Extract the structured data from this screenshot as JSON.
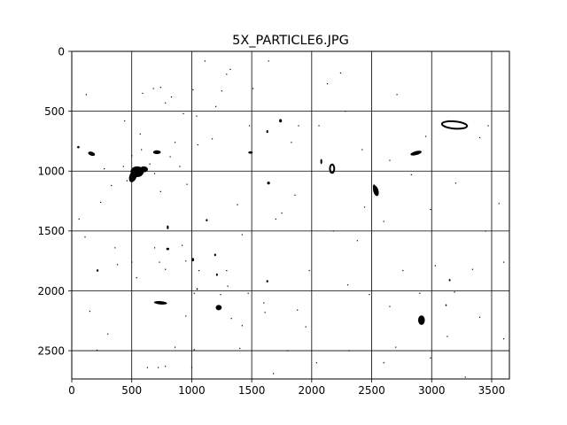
{
  "chart_data": {
    "type": "image",
    "title": "5X_PARTICLE6.JPG",
    "xlabel": "",
    "ylabel": "",
    "xlim": [
      0,
      3648
    ],
    "ylim": [
      2736,
      0
    ],
    "y_inverted": true,
    "xticks": [
      0,
      500,
      1000,
      1500,
      2000,
      2500,
      3000,
      3500
    ],
    "yticks": [
      0,
      500,
      1000,
      1500,
      2000,
      2500
    ],
    "grid": true,
    "legend": "none",
    "colors": {
      "background": "#ffffff",
      "particle": "#000000",
      "grid": "#000000"
    },
    "particles": [
      {
        "x": 545,
        "y": 1005,
        "rx": 55,
        "ry": 45,
        "angle": 0
      },
      {
        "x": 510,
        "y": 1045,
        "rx": 30,
        "ry": 50,
        "angle": 20
      },
      {
        "x": 600,
        "y": 985,
        "rx": 35,
        "ry": 25,
        "angle": 0
      },
      {
        "x": 165,
        "y": 855,
        "rx": 30,
        "ry": 16,
        "angle": 20
      },
      {
        "x": 55,
        "y": 800,
        "rx": 10,
        "ry": 10,
        "angle": 0
      },
      {
        "x": 710,
        "y": 842,
        "rx": 32,
        "ry": 16,
        "angle": 0
      },
      {
        "x": 740,
        "y": 2100,
        "rx": 55,
        "ry": 14,
        "angle": 5
      },
      {
        "x": 1225,
        "y": 2140,
        "rx": 25,
        "ry": 22,
        "angle": 0
      },
      {
        "x": 2870,
        "y": 850,
        "rx": 48,
        "ry": 16,
        "angle": -15
      },
      {
        "x": 2535,
        "y": 1165,
        "rx": 22,
        "ry": 45,
        "angle": -15
      },
      {
        "x": 2915,
        "y": 2245,
        "rx": 28,
        "ry": 40,
        "angle": 0
      },
      {
        "x": 1740,
        "y": 580,
        "rx": 12,
        "ry": 14,
        "angle": 0
      },
      {
        "x": 1630,
        "y": 670,
        "rx": 8,
        "ry": 12,
        "angle": 0
      },
      {
        "x": 1640,
        "y": 1100,
        "rx": 12,
        "ry": 12,
        "angle": 0
      },
      {
        "x": 1490,
        "y": 845,
        "rx": 18,
        "ry": 10,
        "angle": 0
      },
      {
        "x": 2080,
        "y": 920,
        "rx": 8,
        "ry": 22,
        "angle": 0
      },
      {
        "x": 1195,
        "y": 1700,
        "rx": 8,
        "ry": 10,
        "angle": 0
      },
      {
        "x": 1210,
        "y": 1865,
        "rx": 8,
        "ry": 10,
        "angle": 0
      },
      {
        "x": 1010,
        "y": 1740,
        "rx": 10,
        "ry": 14,
        "angle": 0
      },
      {
        "x": 800,
        "y": 1650,
        "rx": 12,
        "ry": 10,
        "angle": 0
      },
      {
        "x": 1630,
        "y": 1920,
        "rx": 8,
        "ry": 10,
        "angle": 0
      },
      {
        "x": 800,
        "y": 1470,
        "rx": 8,
        "ry": 16,
        "angle": 0
      },
      {
        "x": 215,
        "y": 1830,
        "rx": 8,
        "ry": 10,
        "angle": 0
      },
      {
        "x": 1125,
        "y": 1410,
        "rx": 8,
        "ry": 10,
        "angle": 0
      },
      {
        "x": 3150,
        "y": 1910,
        "rx": 7,
        "ry": 10,
        "angle": 0
      },
      {
        "x": 3120,
        "y": 2120,
        "rx": 6,
        "ry": 8,
        "angle": 0
      },
      {
        "x": 1045,
        "y": 1985,
        "rx": 6,
        "ry": 8,
        "angle": 0
      },
      {
        "x": 2520,
        "y": 1130,
        "rx": 10,
        "ry": 18,
        "angle": 0
      }
    ],
    "particle_outlines": [
      {
        "x": 3190,
        "y": 615,
        "rx": 105,
        "ry": 30,
        "angle": 5
      },
      {
        "x": 2170,
        "y": 980,
        "rx": 18,
        "ry": 35,
        "angle": 0
      }
    ],
    "specks": [
      [
        210,
        2495
      ],
      [
        150,
        2170
      ],
      [
        590,
        350
      ],
      [
        680,
        310
      ],
      [
        740,
        300
      ],
      [
        830,
        380
      ],
      [
        780,
        430
      ],
      [
        860,
        760
      ],
      [
        820,
        880
      ],
      [
        900,
        960
      ],
      [
        740,
        1170
      ],
      [
        960,
        1110
      ],
      [
        240,
        1260
      ],
      [
        360,
        1640
      ],
      [
        380,
        1780
      ],
      [
        500,
        1760
      ],
      [
        540,
        1890
      ],
      [
        690,
        1640
      ],
      [
        730,
        1760
      ],
      [
        780,
        1820
      ],
      [
        920,
        1620
      ],
      [
        950,
        1750
      ],
      [
        1020,
        2020
      ],
      [
        1060,
        1830
      ],
      [
        1240,
        2030
      ],
      [
        1290,
        1830
      ],
      [
        1300,
        1960
      ],
      [
        1330,
        2230
      ],
      [
        1400,
        2480
      ],
      [
        1470,
        2020
      ],
      [
        1600,
        2100
      ],
      [
        1610,
        2180
      ],
      [
        1880,
        2160
      ],
      [
        2310,
        2500
      ],
      [
        2380,
        1580
      ],
      [
        2760,
        1830
      ],
      [
        2990,
        2560
      ],
      [
        3130,
        2380
      ],
      [
        3190,
        2010
      ],
      [
        3280,
        2720
      ],
      [
        1020,
        2490
      ],
      [
        1000,
        2640
      ],
      [
        780,
        2630
      ],
      [
        720,
        2640
      ],
      [
        630,
        2640
      ],
      [
        1680,
        2690
      ],
      [
        2040,
        2600
      ],
      [
        1640,
        80
      ],
      [
        1110,
        80
      ],
      [
        1010,
        320
      ],
      [
        1290,
        190
      ],
      [
        1320,
        150
      ],
      [
        1250,
        330
      ],
      [
        1200,
        460
      ],
      [
        1040,
        540
      ],
      [
        1050,
        780
      ],
      [
        1480,
        620
      ],
      [
        1830,
        760
      ],
      [
        1890,
        620
      ],
      [
        2060,
        620
      ],
      [
        2240,
        180
      ],
      [
        2710,
        360
      ],
      [
        2830,
        1030
      ],
      [
        2990,
        1320
      ],
      [
        3340,
        1820
      ],
      [
        2700,
        2470
      ],
      [
        2280,
        500
      ],
      [
        2130,
        270
      ],
      [
        1510,
        310
      ],
      [
        440,
        580
      ],
      [
        500,
        870
      ],
      [
        430,
        960
      ],
      [
        460,
        1080
      ],
      [
        580,
        820
      ],
      [
        650,
        940
      ],
      [
        690,
        1020
      ],
      [
        1170,
        730
      ],
      [
        1380,
        1280
      ],
      [
        1420,
        1530
      ],
      [
        1700,
        1400
      ],
      [
        1750,
        1350
      ],
      [
        2440,
        1300
      ],
      [
        2600,
        1420
      ],
      [
        2300,
        1950
      ],
      [
        2650,
        2130
      ],
      [
        2900,
        2020
      ],
      [
        3030,
        1790
      ],
      [
        3400,
        2220
      ],
      [
        3600,
        1760
      ],
      [
        3560,
        1270
      ],
      [
        3400,
        720
      ],
      [
        3470,
        620
      ],
      [
        2950,
        710
      ],
      [
        2650,
        910
      ],
      [
        2420,
        820
      ],
      [
        1980,
        1830
      ],
      [
        1950,
        2300
      ],
      [
        1800,
        2500
      ],
      [
        1420,
        2290
      ],
      [
        950,
        2210
      ],
      [
        860,
        2470
      ],
      [
        300,
        2360
      ],
      [
        60,
        1400
      ],
      [
        110,
        1550
      ],
      [
        330,
        1120
      ],
      [
        270,
        980
      ],
      [
        570,
        690
      ],
      [
        930,
        520
      ],
      [
        120,
        360
      ],
      [
        2480,
        2030
      ],
      [
        2600,
        2600
      ],
      [
        3200,
        1100
      ],
      [
        3450,
        1500
      ],
      [
        3600,
        2400
      ],
      [
        2180,
        1500
      ],
      [
        1860,
        1200
      ]
    ]
  }
}
